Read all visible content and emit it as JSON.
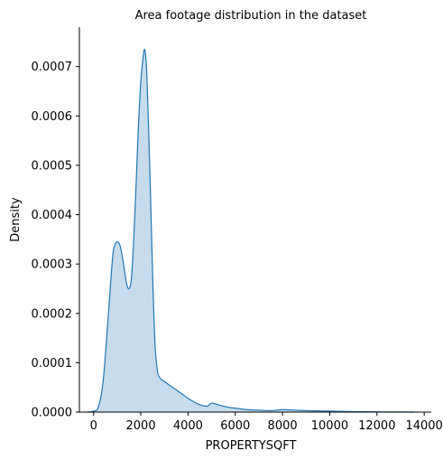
{
  "chart_data": {
    "type": "area",
    "title": "Area footage distribution in the dataset",
    "xlabel": "PROPERTYSQFT",
    "ylabel": "Density",
    "xlim": [
      -600,
      14300
    ],
    "ylim": [
      0,
      0.00078
    ],
    "x_ticks": [
      0,
      2000,
      4000,
      6000,
      8000,
      10000,
      12000,
      14000
    ],
    "x_tick_labels": [
      "0",
      "2000",
      "4000",
      "6000",
      "8000",
      "10000",
      "12000",
      "14000"
    ],
    "y_ticks": [
      0,
      0.0001,
      0.0002,
      0.0003,
      0.0004,
      0.0005,
      0.0006,
      0.0007
    ],
    "y_tick_labels": [
      "0.0000",
      "0.0001",
      "0.0002",
      "0.0003",
      "0.0004",
      "0.0005",
      "0.0006",
      "0.0007"
    ],
    "grid": false,
    "series": [
      {
        "line_color": "#1f77b4",
        "fill_color": "#c6dcec",
        "x": [
          -300,
          0,
          200,
          400,
          600,
          800,
          900,
          1000,
          1100,
          1200,
          1300,
          1400,
          1500,
          1600,
          1700,
          1800,
          1900,
          2000,
          2100,
          2150,
          2200,
          2250,
          2300,
          2400,
          2500,
          2600,
          2700,
          2800,
          3000,
          3200,
          3500,
          3800,
          4000,
          4200,
          4500,
          4800,
          5000,
          5200,
          5500,
          5800,
          6000,
          6500,
          7000,
          7500,
          8000,
          8500,
          9000,
          10000,
          11000,
          12000,
          13000,
          13600
        ],
        "y": [
          0,
          2e-06,
          1e-05,
          6e-05,
          0.00018,
          0.00031,
          0.000338,
          0.000345,
          0.00034,
          0.00032,
          0.00029,
          0.00026,
          0.00025,
          0.00027,
          0.00035,
          0.00046,
          0.00058,
          0.00067,
          0.00072,
          0.000735,
          0.000725,
          0.00069,
          0.00062,
          0.00046,
          0.00028,
          0.00014,
          8.5e-05,
          7e-05,
          6.2e-05,
          5.5e-05,
          4.5e-05,
          3.5e-05,
          2.8e-05,
          2.2e-05,
          1.5e-05,
          1.2e-05,
          1.8e-05,
          1.6e-05,
          1.2e-05,
          9e-06,
          8e-06,
          5e-06,
          4e-06,
          3e-06,
          5e-06,
          4e-06,
          3e-06,
          2e-06,
          1e-06,
          5e-07,
          2e-07,
          0
        ]
      }
    ]
  }
}
